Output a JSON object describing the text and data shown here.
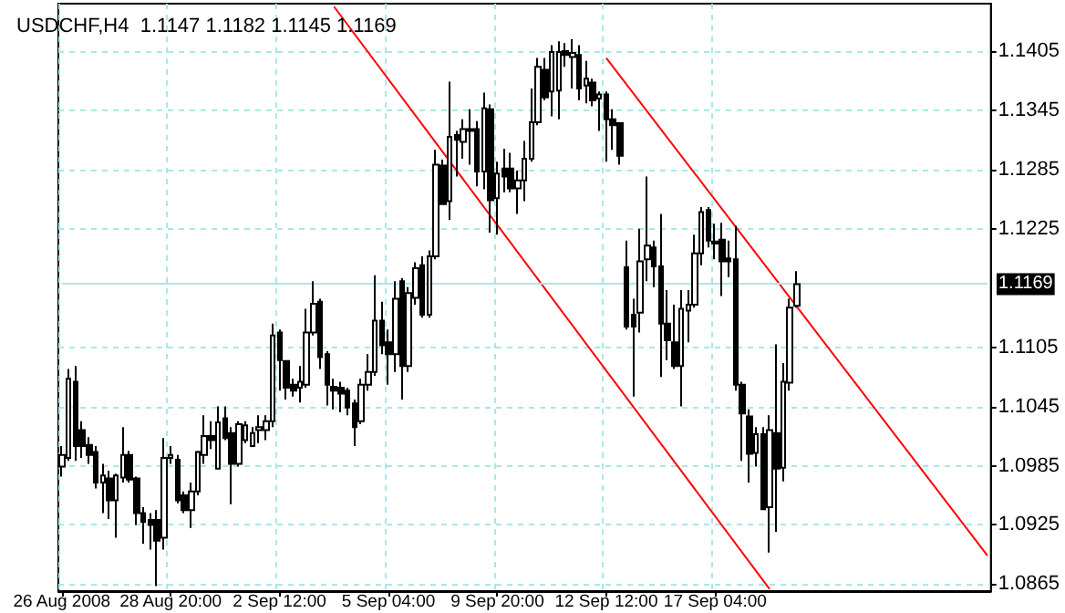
{
  "chart_data": {
    "type": "candlestick",
    "title": "USDCHF,H4  1.1147 1.1182 1.1145 1.1169",
    "categories": [
      "26 Aug 2008",
      null,
      null,
      null,
      null,
      null,
      null,
      null,
      null,
      null,
      null,
      null,
      null,
      null,
      null,
      null,
      "28 Aug 20:00",
      null,
      null,
      null,
      null,
      null,
      null,
      null,
      null,
      null,
      null,
      null,
      null,
      null,
      null,
      null,
      "2 Sep 12:00",
      null,
      null,
      null,
      null,
      null,
      null,
      null,
      null,
      null,
      null,
      null,
      null,
      null,
      null,
      null,
      "5 Sep 04:00",
      null,
      null,
      null,
      null,
      null,
      null,
      null,
      null,
      null,
      null,
      null,
      null,
      null,
      null,
      null,
      "9 Sep 20:00",
      null,
      null,
      null,
      null,
      null,
      null,
      null,
      null,
      null,
      null,
      null,
      null,
      null,
      null,
      null,
      "12 Sep 12:00",
      null,
      null,
      null,
      null,
      null,
      null,
      null,
      null,
      null,
      null,
      null,
      null,
      null,
      null,
      null,
      "17 Sep 04:00",
      null,
      null,
      null,
      null,
      null,
      null,
      null,
      null,
      null,
      null,
      null,
      null,
      null,
      null,
      null,
      null,
      null,
      null,
      null,
      null,
      null,
      null,
      null,
      null,
      null,
      null,
      null,
      null,
      null,
      null,
      null,
      null,
      null,
      null,
      null,
      null,
      null,
      null,
      null,
      null
    ],
    "ohlc": [
      [
        1.0984,
        1.1005,
        1.0974,
        1.0996
      ],
      [
        1.0993,
        1.1083,
        1.099,
        1.1073
      ],
      [
        1.107,
        1.1086,
        1.099,
        1.1005
      ],
      [
        1.1021,
        1.103,
        1.0993,
        1.1005
      ],
      [
        1.1006,
        1.1014,
        1.0987,
        1.0996
      ],
      [
        1.0999,
        1.1005,
        1.0962,
        1.0968
      ],
      [
        1.0968,
        1.0987,
        1.0937,
        1.0975
      ],
      [
        1.0972,
        1.098,
        1.0931,
        1.095
      ],
      [
        1.095,
        1.0977,
        1.0912,
        1.0975
      ],
      [
        1.0973,
        1.1024,
        1.0968,
        1.0996
      ],
      [
        1.0996,
        1.1,
        1.0968,
        1.0971
      ],
      [
        1.0972,
        1.0974,
        1.0925,
        1.0937
      ],
      [
        1.0937,
        1.0943,
        1.0906,
        1.0928
      ],
      [
        1.093,
        1.0937,
        1.09,
        1.0925
      ],
      [
        1.093,
        1.094,
        1.0863,
        1.0909
      ],
      [
        1.0912,
        1.1013,
        1.09,
        1.0993
      ],
      [
        1.0993,
        1.1005,
        1.0987,
        1.0996
      ],
      [
        1.0991,
        1.0996,
        1.0947,
        1.095
      ],
      [
        1.0955,
        1.0959,
        1.0937,
        1.094
      ],
      [
        1.094,
        1.0968,
        1.0922,
        1.0959
      ],
      [
        1.0959,
        1.1,
        1.0955,
        1.0999
      ],
      [
        1.0996,
        1.1036,
        1.0987,
        1.1015
      ],
      [
        1.1015,
        1.103,
        1.1002,
        1.1011
      ],
      [
        1.0982,
        1.1045,
        1.0981,
        1.1029
      ],
      [
        1.1033,
        1.1045,
        1.1011,
        1.1013
      ],
      [
        1.1018,
        1.1024,
        1.0946,
        1.0987
      ],
      [
        1.0987,
        1.103,
        1.0984,
        1.1027
      ],
      [
        1.1011,
        1.103,
        1.1008,
        1.1026
      ],
      [
        1.1005,
        1.1024,
        1.1005,
        1.1018
      ],
      [
        1.1021,
        1.1036,
        1.1008,
        1.1024
      ],
      [
        1.1021,
        1.1036,
        1.1011,
        1.103
      ],
      [
        1.103,
        1.1129,
        1.1024,
        1.1117
      ],
      [
        1.112,
        1.1123,
        1.1061,
        1.1092
      ],
      [
        1.1091,
        1.1092,
        1.1052,
        1.1064
      ],
      [
        1.1067,
        1.1073,
        1.1055,
        1.1061
      ],
      [
        1.1064,
        1.1086,
        1.1049,
        1.107
      ],
      [
        1.1067,
        1.1144,
        1.1064,
        1.112
      ],
      [
        1.112,
        1.1172,
        1.1117,
        1.1149
      ],
      [
        1.1151,
        1.1154,
        1.1083,
        1.1095
      ],
      [
        1.1098,
        1.1101,
        1.1046,
        1.1067
      ],
      [
        1.1065,
        1.1073,
        1.1042,
        1.1061
      ],
      [
        1.1064,
        1.107,
        1.1039,
        1.1058
      ],
      [
        1.1061,
        1.1064,
        1.1036,
        1.1044
      ],
      [
        1.1048,
        1.1052,
        1.1005,
        1.1024
      ],
      [
        1.103,
        1.1073,
        1.1027,
        1.1067
      ],
      [
        1.1067,
        1.1098,
        1.1061,
        1.108
      ],
      [
        1.108,
        1.1178,
        1.1076,
        1.1132
      ],
      [
        1.1132,
        1.1151,
        1.1098,
        1.1107
      ],
      [
        1.111,
        1.1123,
        1.1067,
        1.1098
      ],
      [
        1.1098,
        1.1172,
        1.108,
        1.1154
      ],
      [
        1.1172,
        1.1175,
        1.1052,
        1.1086
      ],
      [
        1.1086,
        1.1166,
        1.108,
        1.116
      ],
      [
        1.1155,
        1.1191,
        1.1148,
        1.1185
      ],
      [
        1.1188,
        1.1197,
        1.1135,
        1.1138
      ],
      [
        1.1138,
        1.1203,
        1.1135,
        1.1197
      ],
      [
        1.1197,
        1.1305,
        1.1194,
        1.129
      ],
      [
        1.1289,
        1.1295,
        1.1249,
        1.125
      ],
      [
        1.1253,
        1.1374,
        1.1234,
        1.1318
      ],
      [
        1.132,
        1.1324,
        1.1278,
        1.1315
      ],
      [
        1.1313,
        1.1336,
        1.1296,
        1.1326
      ],
      [
        1.1324,
        1.1346,
        1.129,
        1.1326
      ],
      [
        1.1326,
        1.1334,
        1.1268,
        1.1283
      ],
      [
        1.1283,
        1.1363,
        1.1265,
        1.1347
      ],
      [
        1.1346,
        1.1351,
        1.1221,
        1.1254
      ],
      [
        1.1256,
        1.1293,
        1.1219,
        1.1281
      ],
      [
        1.1286,
        1.1306,
        1.1262,
        1.1278
      ],
      [
        1.1286,
        1.1302,
        1.1262,
        1.1266
      ],
      [
        1.1266,
        1.1284,
        1.124,
        1.1274
      ],
      [
        1.1274,
        1.1314,
        1.1253,
        1.1296
      ],
      [
        1.1296,
        1.1367,
        1.1293,
        1.1333
      ],
      [
        1.1333,
        1.1398,
        1.133,
        1.1389
      ],
      [
        1.1386,
        1.1398,
        1.1355,
        1.1358
      ],
      [
        1.1364,
        1.1411,
        1.1339,
        1.1404
      ],
      [
        1.1365,
        1.1415,
        1.1336,
        1.1404
      ],
      [
        1.1405,
        1.1413,
        1.1389,
        1.1401
      ],
      [
        1.1399,
        1.1417,
        1.1367,
        1.1403
      ],
      [
        1.1401,
        1.1411,
        1.1355,
        1.1367
      ],
      [
        1.137,
        1.1395,
        1.1352,
        1.1377
      ],
      [
        1.1373,
        1.1377,
        1.1349,
        1.1355
      ],
      [
        1.1357,
        1.1364,
        1.1324,
        1.1361
      ],
      [
        1.1361,
        1.1364,
        1.1293,
        1.1336
      ],
      [
        1.1336,
        1.1346,
        1.1305,
        1.133
      ],
      [
        1.1332,
        1.1333,
        1.129,
        1.1299
      ],
      [
        1.1186,
        1.1213,
        1.1123,
        1.1126
      ],
      [
        1.1138,
        1.1154,
        1.1055,
        1.1126
      ],
      [
        1.114,
        1.1225,
        1.112,
        1.1192
      ],
      [
        1.1194,
        1.1278,
        1.1172,
        1.1208
      ],
      [
        1.1206,
        1.1213,
        1.1166,
        1.1187
      ],
      [
        1.1187,
        1.124,
        1.1075,
        1.1129
      ],
      [
        1.1129,
        1.1163,
        1.1092,
        1.1112
      ],
      [
        1.111,
        1.1148,
        1.1083,
        1.1086
      ],
      [
        1.1086,
        1.1163,
        1.1045,
        1.1144
      ],
      [
        1.1142,
        1.1163,
        1.111,
        1.1148
      ],
      [
        1.1148,
        1.1219,
        1.1145,
        1.12
      ],
      [
        1.12,
        1.1247,
        1.1188,
        1.1242
      ],
      [
        1.1244,
        1.1247,
        1.1206,
        1.1213
      ],
      [
        1.1212,
        1.123,
        1.1194,
        1.121
      ],
      [
        1.1214,
        1.1231,
        1.1157,
        1.1192
      ],
      [
        1.1195,
        1.1213,
        1.1176,
        1.1192
      ],
      [
        1.1194,
        1.1228,
        1.1061,
        1.1067
      ],
      [
        1.1067,
        1.107,
        1.099,
        1.1038
      ],
      [
        1.1035,
        1.1042,
        1.0968,
        1.0997
      ],
      [
        1.0998,
        1.1024,
        1.0984,
        1.1017
      ],
      [
        1.1017,
        1.1024,
        1.094,
        1.0941
      ],
      [
        1.0943,
        1.1036,
        1.0897,
        1.1021
      ],
      [
        1.1018,
        1.1108,
        1.0918,
        1.0982
      ],
      [
        1.0983,
        1.1089,
        1.0969,
        1.107
      ],
      [
        1.1069,
        1.1154,
        1.1061,
        1.1145
      ],
      [
        1.1147,
        1.1182,
        1.1145,
        1.1169
      ],
      null,
      null,
      null,
      null,
      null,
      null,
      null,
      null,
      null,
      null,
      null,
      null,
      null,
      null,
      null,
      null,
      null,
      null,
      null,
      null,
      null,
      null,
      null,
      null,
      null,
      null,
      null,
      null
    ],
    "series": [
      {
        "type": "line",
        "color": "#ff0000",
        "values": [
          null,
          null,
          null,
          null,
          null,
          null,
          null,
          null,
          null,
          null,
          null,
          null,
          null,
          null,
          null,
          null,
          null,
          null,
          null,
          null,
          null,
          null,
          null,
          null,
          null,
          null,
          null,
          null,
          null,
          null,
          null,
          null,
          null,
          null,
          null,
          null,
          null,
          null,
          null,
          null,
          1.145,
          null,
          null,
          null,
          null,
          null,
          null,
          null,
          null,
          null,
          null,
          null,
          null,
          null,
          null,
          null,
          null,
          null,
          null,
          null,
          null,
          null,
          null,
          null,
          null,
          null,
          null,
          null,
          null,
          null,
          null,
          null,
          null,
          null,
          null,
          null,
          null,
          null,
          null,
          null,
          null,
          null,
          null,
          null,
          null,
          null,
          null,
          null,
          null,
          null,
          null,
          null,
          null,
          null,
          null,
          null,
          null,
          null,
          null,
          null,
          null,
          null,
          null,
          null,
          1.086,
          null,
          null,
          null,
          null,
          null,
          null,
          null,
          null,
          null,
          null,
          null,
          null,
          null,
          null,
          null,
          null,
          null,
          null,
          null,
          null,
          null,
          null,
          null,
          null,
          null,
          null,
          null,
          null,
          null,
          null,
          null,
          null
        ]
      },
      {
        "type": "line",
        "color": "#ff0000",
        "values": [
          null,
          null,
          null,
          null,
          null,
          null,
          null,
          null,
          null,
          null,
          null,
          null,
          null,
          null,
          null,
          null,
          null,
          null,
          null,
          null,
          null,
          null,
          null,
          null,
          null,
          null,
          null,
          null,
          null,
          null,
          null,
          null,
          null,
          null,
          null,
          null,
          null,
          null,
          null,
          null,
          null,
          null,
          null,
          null,
          null,
          null,
          null,
          null,
          null,
          null,
          null,
          null,
          null,
          null,
          null,
          null,
          null,
          null,
          null,
          null,
          null,
          null,
          null,
          null,
          null,
          null,
          null,
          null,
          null,
          null,
          null,
          null,
          null,
          null,
          null,
          null,
          null,
          null,
          null,
          null,
          1.1398,
          null,
          null,
          null,
          null,
          null,
          null,
          null,
          null,
          null,
          null,
          null,
          null,
          null,
          null,
          null,
          null,
          null,
          null,
          null,
          null,
          null,
          null,
          null,
          null,
          null,
          null,
          null,
          null,
          null,
          null,
          null,
          null,
          null,
          null,
          null,
          null,
          null,
          null,
          null,
          null,
          null,
          null,
          null,
          null,
          null,
          null,
          null,
          null,
          null,
          null,
          null,
          null,
          null,
          null,
          null,
          1.0894
        ]
      }
    ],
    "ylim": [
      1.0858,
      1.1453
    ],
    "yticks": [
      1.0865,
      1.0925,
      1.0985,
      1.1045,
      1.1105,
      1.1225,
      1.1285,
      1.1345,
      1.1405
    ],
    "grid": true,
    "ref_lines": [
      {
        "axis": "y",
        "value": 1.1169,
        "label": "1.1169",
        "color": "#a8e8e8"
      }
    ]
  }
}
